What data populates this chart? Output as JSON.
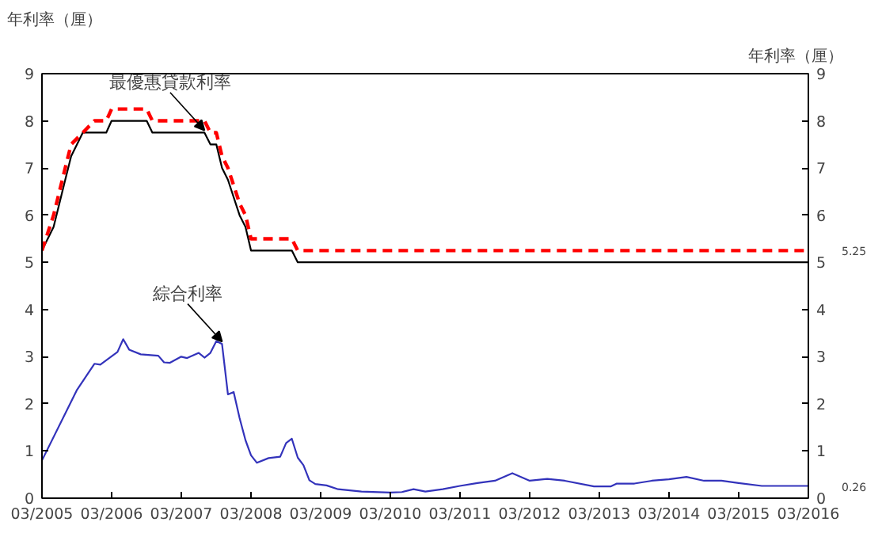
{
  "chart_data": {
    "type": "line",
    "ylabel": "年利率（厘）",
    "y2label": "年利率（厘）",
    "xlim": [
      "2005-03",
      "2016-03"
    ],
    "xticks": [
      {
        "value": "2005-03",
        "label": "03/2005"
      },
      {
        "value": "2006-03",
        "label": "03/2006"
      },
      {
        "value": "2007-03",
        "label": "03/2007"
      },
      {
        "value": "2008-03",
        "label": "03/2008"
      },
      {
        "value": "2009-03",
        "label": "03/2009"
      },
      {
        "value": "2010-03",
        "label": "03/2010"
      },
      {
        "value": "2011-03",
        "label": "03/2011"
      },
      {
        "value": "2012-03",
        "label": "03/2012"
      },
      {
        "value": "2013-03",
        "label": "03/2013"
      },
      {
        "value": "2014-03",
        "label": "03/2014"
      },
      {
        "value": "2015-03",
        "label": "03/2015"
      },
      {
        "value": "2016-03",
        "label": "03/2016"
      }
    ],
    "ylim": [
      0,
      9
    ],
    "yticks": [
      0,
      1,
      2,
      3,
      4,
      5,
      6,
      7,
      8,
      9
    ],
    "y2lim": [
      0,
      9
    ],
    "y2ticks": [
      0,
      1,
      2,
      3,
      4,
      5,
      6,
      7,
      8,
      9
    ],
    "grid": false,
    "marker": "none",
    "series": [
      {
        "color": "#000000",
        "line_style": "solid",
        "x": [
          "2005-03",
          "2005-05",
          "2005-07",
          "2005-08",
          "2005-10",
          "2006-02",
          "2006-03",
          "2006-09",
          "2006-10",
          "2007-07",
          "2007-08",
          "2007-09",
          "2007-10",
          "2007-11",
          "2008-01",
          "2008-02",
          "2008-03",
          "2008-10",
          "2008-11",
          "2016-03"
        ],
        "values": [
          5.25,
          5.75,
          6.75,
          7.25,
          7.75,
          7.75,
          8.0,
          8.0,
          7.75,
          7.75,
          7.5,
          7.5,
          7.0,
          6.75,
          6.0,
          5.75,
          5.25,
          5.25,
          5.0,
          5.0
        ]
      },
      {
        "color": "#ff0000",
        "line_style": "dashed",
        "x": [
          "2005-03",
          "2005-05",
          "2005-07",
          "2005-08",
          "2005-12",
          "2006-02",
          "2006-03",
          "2006-09",
          "2006-10",
          "2007-07",
          "2007-08",
          "2007-09",
          "2007-10",
          "2007-11",
          "2008-01",
          "2008-02",
          "2008-03",
          "2008-10",
          "2008-11",
          "2016-03"
        ],
        "values": [
          5.25,
          6.0,
          7.0,
          7.5,
          8.0,
          8.0,
          8.25,
          8.25,
          8.0,
          8.0,
          7.75,
          7.75,
          7.25,
          7.0,
          6.25,
          6.0,
          5.5,
          5.5,
          5.25,
          5.25
        ]
      },
      {
        "color": "#3333bb",
        "line_style": "solid",
        "x": [
          "2005-03",
          "2005-09",
          "2005-12",
          "2006-01",
          "2006-04",
          "2006-05",
          "2006-06",
          "2006-08",
          "2006-11",
          "2006-12",
          "2007-01",
          "2007-03",
          "2007-04",
          "2007-06",
          "2007-07",
          "2007-08",
          "2007-09",
          "2007-10",
          "2007-11",
          "2007-12",
          "2008-01",
          "2008-02",
          "2008-03",
          "2008-04",
          "2008-06",
          "2008-08",
          "2008-09",
          "2008-10",
          "2008-11",
          "2008-12",
          "2009-01",
          "2009-02",
          "2009-04",
          "2009-06",
          "2009-10",
          "2010-03",
          "2010-05",
          "2010-07",
          "2010-09",
          "2010-12",
          "2011-03",
          "2011-06",
          "2011-09",
          "2011-12",
          "2012-03",
          "2012-06",
          "2012-09",
          "2013-02",
          "2013-05",
          "2013-06",
          "2013-09",
          "2013-12",
          "2014-03",
          "2014-06",
          "2014-09",
          "2014-12",
          "2015-03",
          "2015-07",
          "2016-03"
        ],
        "values": [
          0.8,
          2.3,
          2.85,
          2.83,
          3.1,
          3.37,
          3.15,
          3.05,
          3.02,
          2.88,
          2.87,
          3.0,
          2.97,
          3.08,
          2.98,
          3.08,
          3.33,
          3.27,
          2.2,
          2.25,
          1.7,
          1.23,
          0.91,
          0.75,
          0.85,
          0.88,
          1.17,
          1.26,
          0.86,
          0.7,
          0.38,
          0.3,
          0.27,
          0.19,
          0.14,
          0.12,
          0.13,
          0.19,
          0.14,
          0.19,
          0.26,
          0.32,
          0.37,
          0.53,
          0.37,
          0.41,
          0.37,
          0.25,
          0.25,
          0.31,
          0.31,
          0.37,
          0.4,
          0.45,
          0.37,
          0.37,
          0.32,
          0.26,
          0.26
        ]
      }
    ],
    "annotations": [
      {
        "text": "最優惠貸款利率",
        "x": "2007-07",
        "y": 7.75
      },
      {
        "text": "綜合利率",
        "x": "2007-10",
        "y": 3.27
      },
      {
        "text": "5.25",
        "x": "2016-03",
        "y": 5.25
      },
      {
        "text": "0.26",
        "x": "2016-03",
        "y": 0.26
      }
    ]
  }
}
